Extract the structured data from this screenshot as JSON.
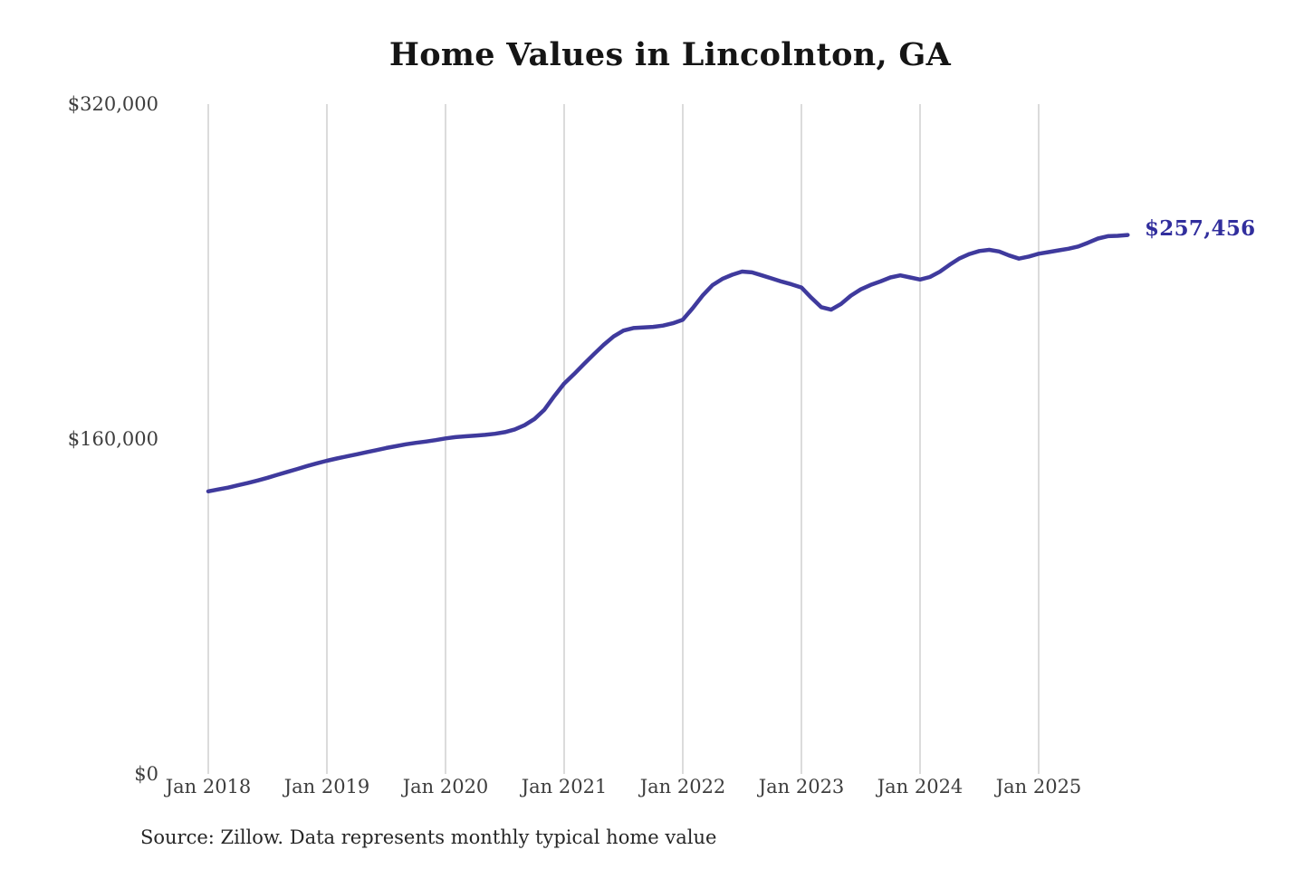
{
  "page": {
    "background_color": "#ffffff"
  },
  "chart_data": {
    "type": "line",
    "title": "Home Values in Lincolnton, GA",
    "source_note": "Source: Zillow. Data represents monthly typical home value",
    "end_annotation": "$257,456",
    "final_value": 257456,
    "series_name": "Monthly typical home value",
    "interval": "monthly",
    "start_month": "2018-01",
    "end_month": "2025-10",
    "x_tick_labels": [
      "Jan 2018",
      "Jan 2019",
      "Jan 2020",
      "Jan 2021",
      "Jan 2022",
      "Jan 2023",
      "Jan 2024",
      "Jan 2025"
    ],
    "y_ticks": [
      {
        "label": "$0",
        "value": 0
      },
      {
        "label": "$160,000",
        "value": 160000
      },
      {
        "label": "$320,000",
        "value": 320000
      }
    ],
    "ylim": [
      0,
      320000
    ],
    "grid": "vertical-only",
    "legend": "none",
    "line_color": "#3f3a9d",
    "grid_color": "#cccccc",
    "annotation_color": "#312e9d",
    "values": [
      135000,
      135900,
      136800,
      137900,
      139000,
      140200,
      141500,
      142900,
      144300,
      145700,
      147100,
      148400,
      149600,
      150700,
      151700,
      152700,
      153700,
      154700,
      155700,
      156600,
      157500,
      158200,
      158800,
      159500,
      160300,
      160900,
      161300,
      161600,
      162000,
      162500,
      163300,
      164600,
      166600,
      169600,
      174000,
      180500,
      186500,
      191000,
      195800,
      200500,
      205000,
      209000,
      211800,
      213000,
      213300,
      213600,
      214200,
      215300,
      217000,
      222500,
      228500,
      233500,
      236500,
      238500,
      240000,
      239600,
      238200,
      236700,
      235200,
      233900,
      232400,
      227500,
      223000,
      221800,
      224500,
      228500,
      231500,
      233600,
      235300,
      237200,
      238200,
      237200,
      236200,
      237400,
      239900,
      243300,
      246300,
      248400,
      249800,
      250400,
      249600,
      247700,
      246200,
      247200,
      248500,
      249300,
      250100,
      250900,
      252000,
      253800,
      255800,
      256900,
      257100,
      257456
    ]
  }
}
